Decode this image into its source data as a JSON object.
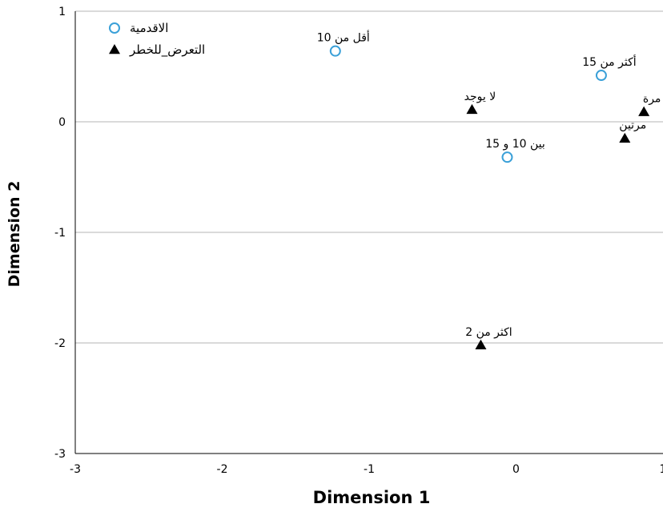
{
  "chart_data": {
    "type": "scatter",
    "xlabel": "Dimension 1",
    "ylabel": "Dimension 2",
    "xlim": [
      -3,
      1
    ],
    "ylim": [
      -3,
      1
    ],
    "x_ticks": [
      "-3",
      "-2",
      "-1",
      "0",
      "1"
    ],
    "y_ticks": [
      "-3",
      "-2",
      "-1",
      "0",
      "1"
    ],
    "grid": "horizontal at major y ticks",
    "legend_position": "top-left",
    "series": [
      {
        "name": "الاقدمية",
        "marker": "open-circle",
        "color": "#3aa0d8",
        "points": [
          {
            "label": "أقل من 10",
            "x": -1.23,
            "y": 0.64
          },
          {
            "label": "أكثر من 15",
            "x": 0.58,
            "y": 0.42
          },
          {
            "label": "بين 10 و 15",
            "x": -0.06,
            "y": -0.32
          }
        ]
      },
      {
        "name": "التعرض_للخطر",
        "marker": "filled-triangle",
        "color": "#000000",
        "points": [
          {
            "label": "لا يوجد",
            "x": -0.3,
            "y": 0.11
          },
          {
            "label": "مرة",
            "x": 0.87,
            "y": 0.09
          },
          {
            "label": "مرتين",
            "x": 0.74,
            "y": -0.15
          },
          {
            "label": "اكثر من 2",
            "x": -0.24,
            "y": -2.02
          }
        ]
      }
    ]
  }
}
